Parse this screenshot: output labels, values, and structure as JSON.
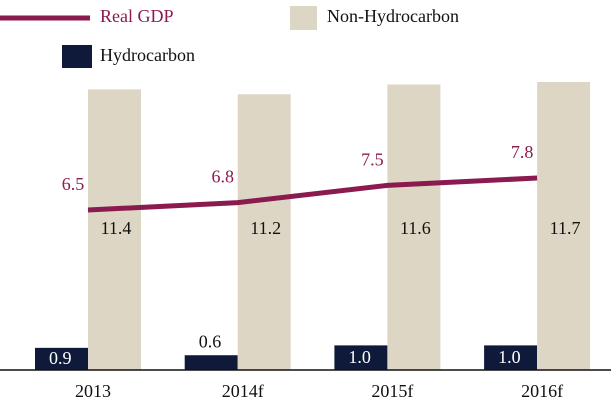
{
  "chart_data": {
    "type": "bar",
    "categories": [
      "2013",
      "2014f",
      "2015f",
      "2016f"
    ],
    "series": [
      {
        "name": "Hydrocarbon",
        "color": "#0f1a3a",
        "values": [
          0.9,
          0.6,
          1.0,
          1.0
        ],
        "value_labels": [
          "0.9",
          "0.6",
          "1.0",
          "1.0"
        ]
      },
      {
        "name": "Non-Hydrocarbon",
        "color": "#ddd6c4",
        "values": [
          11.4,
          11.2,
          11.6,
          11.7
        ]
      },
      {
        "name": "Real GDP",
        "type": "line",
        "color": "#8b1a4f",
        "values": [
          6.5,
          6.8,
          7.5,
          7.8
        ]
      }
    ],
    "ylim": [
      0,
      13
    ]
  }
}
